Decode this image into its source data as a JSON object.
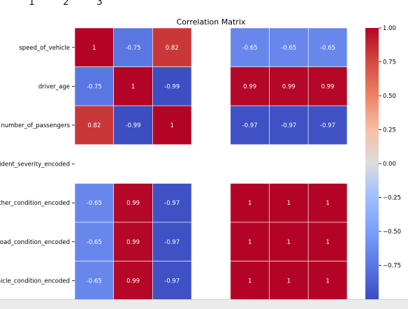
{
  "top_labels": [
    "1",
    "2",
    "3"
  ],
  "chart_data": {
    "type": "heatmap",
    "title": "Correlation Matrix",
    "row_labels": [
      "speed_of_vehicle",
      "driver_age",
      "number_of_passengers",
      "accident_severity_encoded",
      "weather_condition_encoded",
      "road_condition_encoded",
      "vehicle_condition_encoded"
    ],
    "values": [
      [
        1,
        -0.75,
        0.82,
        null,
        -0.65,
        -0.65,
        -0.65
      ],
      [
        -0.75,
        1,
        -0.99,
        null,
        0.99,
        0.99,
        0.99
      ],
      [
        0.82,
        -0.99,
        1,
        null,
        -0.97,
        -0.97,
        -0.97
      ],
      [
        null,
        null,
        null,
        null,
        null,
        null,
        null
      ],
      [
        -0.65,
        0.99,
        -0.97,
        null,
        1,
        1,
        1
      ],
      [
        -0.65,
        0.99,
        -0.97,
        null,
        1,
        1,
        1
      ],
      [
        -0.65,
        0.99,
        -0.97,
        null,
        1,
        1,
        1
      ]
    ],
    "colorbar": {
      "colormap": "coolwarm",
      "range": [
        -1,
        1
      ],
      "ticks": [
        1.0,
        0.75,
        0.5,
        0.25,
        0.0,
        -0.25,
        -0.5,
        -0.75
      ],
      "tick_labels": [
        "1.00",
        "0.75",
        "0.50",
        "0.25",
        "0.00",
        "−0.25",
        "−0.50",
        "−0.75"
      ]
    }
  }
}
